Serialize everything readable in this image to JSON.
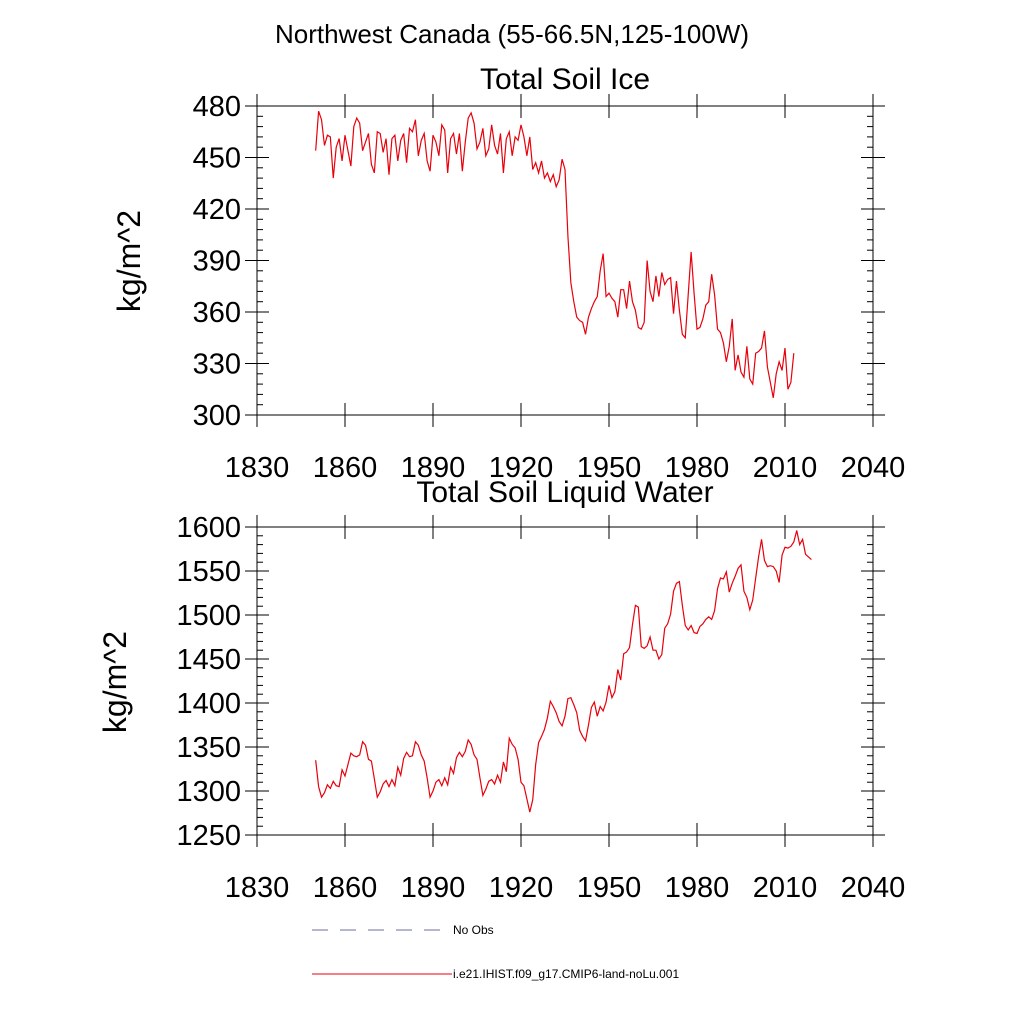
{
  "figure": {
    "title": "Northwest Canada (55-66.5N,125-100W)"
  },
  "legend": [
    {
      "label": "No Obs",
      "color": "#6b6f9a",
      "style": "dashed"
    },
    {
      "label": "i.e21.IHIST.f09_g17.CMIP6-land-noLu.001",
      "color": "#e8000b",
      "style": "solid"
    }
  ],
  "chart_data": [
    {
      "type": "line",
      "title": "Total Soil Ice",
      "ylabel": "kg/m^2",
      "xlim": [
        1830,
        2040
      ],
      "ylim": [
        300,
        480
      ],
      "xticks": [
        1830,
        1860,
        1890,
        1920,
        1950,
        1980,
        2010,
        2040
      ],
      "yticks": [
        300,
        330,
        360,
        390,
        420,
        450,
        480
      ],
      "series": [
        {
          "color": "#e8000b",
          "x_start": 1850,
          "values": [
            454,
            477,
            472,
            457,
            463,
            462,
            438,
            456,
            461,
            448,
            463,
            454,
            445,
            468,
            473,
            470,
            454,
            459,
            464,
            446,
            441,
            465,
            464,
            453,
            461,
            440,
            461,
            463,
            448,
            460,
            464,
            447,
            467,
            465,
            472,
            451,
            460,
            464,
            448,
            442,
            463,
            459,
            451,
            469,
            466,
            441,
            461,
            464,
            452,
            464,
            442,
            459,
            473,
            476,
            470,
            455,
            459,
            467,
            451,
            455,
            469,
            457,
            452,
            464,
            441,
            461,
            465,
            451,
            462,
            460,
            469,
            462,
            451,
            462,
            443,
            447,
            441,
            448,
            438,
            441,
            436,
            440,
            433,
            437,
            449,
            443,
            404,
            377,
            366,
            357,
            355,
            354,
            347,
            357,
            362,
            366,
            369,
            384,
            394,
            369,
            371,
            368,
            366,
            357,
            373,
            373,
            362,
            378,
            366,
            361,
            351,
            350,
            354,
            390,
            372,
            366,
            381,
            369,
            383,
            376,
            379,
            380,
            359,
            378,
            361,
            347,
            345,
            370,
            395,
            371,
            350,
            351,
            356,
            364,
            366,
            382,
            370,
            350,
            348,
            342,
            331,
            340,
            356,
            326,
            335,
            325,
            322,
            340,
            321,
            318,
            336,
            337,
            339,
            349,
            328,
            319,
            310,
            324,
            331,
            326,
            339,
            315,
            319,
            336
          ]
        }
      ]
    },
    {
      "type": "line",
      "title": "Total Soil Liquid Water",
      "ylabel": "kg/m^2",
      "xlim": [
        1830,
        2040
      ],
      "ylim": [
        1250,
        1600
      ],
      "xticks": [
        1830,
        1860,
        1890,
        1920,
        1950,
        1980,
        2010,
        2040
      ],
      "yticks": [
        1250,
        1300,
        1350,
        1400,
        1450,
        1500,
        1550,
        1600
      ],
      "series": [
        {
          "color": "#e8000b",
          "x_start": 1850,
          "values": [
            1335,
            1305,
            1293,
            1298,
            1307,
            1303,
            1311,
            1306,
            1305,
            1324,
            1317,
            1330,
            1343,
            1340,
            1339,
            1341,
            1356,
            1352,
            1336,
            1334,
            1314,
            1293,
            1299,
            1308,
            1312,
            1305,
            1313,
            1306,
            1327,
            1318,
            1337,
            1344,
            1339,
            1340,
            1356,
            1352,
            1341,
            1334,
            1315,
            1293,
            1300,
            1310,
            1313,
            1306,
            1315,
            1307,
            1327,
            1320,
            1338,
            1344,
            1339,
            1345,
            1358,
            1353,
            1341,
            1336,
            1315,
            1295,
            1302,
            1311,
            1313,
            1308,
            1318,
            1310,
            1333,
            1322,
            1360,
            1353,
            1349,
            1336,
            1310,
            1306,
            1291,
            1276,
            1290,
            1330,
            1355,
            1362,
            1370,
            1383,
            1402,
            1396,
            1389,
            1379,
            1374,
            1385,
            1405,
            1406,
            1398,
            1389,
            1369,
            1362,
            1357,
            1375,
            1395,
            1401,
            1385,
            1396,
            1391,
            1401,
            1420,
            1406,
            1413,
            1438,
            1426,
            1456,
            1458,
            1463,
            1489,
            1511,
            1509,
            1464,
            1462,
            1465,
            1475,
            1460,
            1460,
            1450,
            1455,
            1485,
            1490,
            1501,
            1527,
            1536,
            1538,
            1511,
            1488,
            1483,
            1488,
            1480,
            1479,
            1487,
            1490,
            1495,
            1498,
            1495,
            1505,
            1530,
            1542,
            1541,
            1549,
            1526,
            1536,
            1544,
            1553,
            1557,
            1527,
            1520,
            1506,
            1517,
            1542,
            1566,
            1586,
            1562,
            1555,
            1556,
            1555,
            1550,
            1537,
            1568,
            1577,
            1576,
            1578,
            1583,
            1596,
            1580,
            1586,
            1569,
            1566,
            1563
          ]
        }
      ]
    }
  ]
}
